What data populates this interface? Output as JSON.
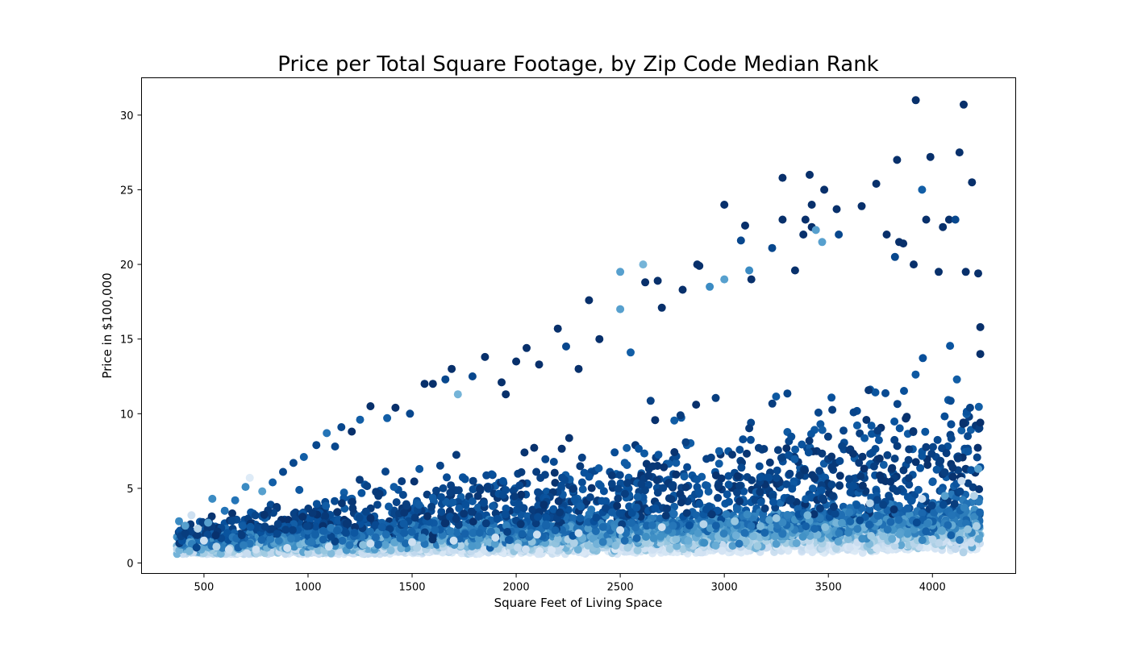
{
  "chart_data": {
    "type": "scatter",
    "title": "Price per Total Square Footage, by Zip Code Median Rank",
    "xlabel": "Square Feet of Living Space",
    "ylabel": "Price in $100,000",
    "xlim": [
      200,
      4400
    ],
    "ylim": [
      -0.7,
      32.5
    ],
    "x_ticks": [
      500,
      1000,
      1500,
      2000,
      2500,
      3000,
      3500,
      4000
    ],
    "y_ticks": [
      0,
      5,
      10,
      15,
      20,
      25,
      30
    ],
    "grid": false,
    "colormap": "Blues",
    "color_encoding": "zip code median rank (light = low, dark = high)",
    "colors": {
      "darkest": "#08306b",
      "dark": "#08519c",
      "mid_dark": "#2171b5",
      "mid": "#4292c6",
      "mid_light": "#6baed6",
      "light": "#9ecae1",
      "lighter": "#c6dbef",
      "lightest": "#deebf7"
    },
    "points": [
      [
        380,
        2.8,
        0.6
      ],
      [
        410,
        2.5,
        0.5
      ],
      [
        430,
        0.8,
        0.4
      ],
      [
        440,
        3.2,
        0.1
      ],
      [
        470,
        2.3,
        0.2
      ],
      [
        500,
        1.5,
        0.1
      ],
      [
        520,
        2.7,
        0.5
      ],
      [
        540,
        4.3,
        0.6
      ],
      [
        560,
        1.1,
        0.2
      ],
      [
        600,
        3.5,
        0.7
      ],
      [
        650,
        4.2,
        0.7
      ],
      [
        700,
        5.1,
        0.6
      ],
      [
        720,
        5.7,
        0.0
      ],
      [
        780,
        4.8,
        0.5
      ],
      [
        830,
        5.4,
        0.8
      ],
      [
        880,
        6.1,
        0.9
      ],
      [
        930,
        6.7,
        0.9
      ],
      [
        980,
        7.1,
        0.8
      ],
      [
        1040,
        7.9,
        0.9
      ],
      [
        1090,
        8.7,
        0.7
      ],
      [
        1130,
        7.8,
        0.9
      ],
      [
        1160,
        9.1,
        0.9
      ],
      [
        1210,
        8.8,
        1.0
      ],
      [
        1250,
        9.6,
        0.8
      ],
      [
        1300,
        10.5,
        1.0
      ],
      [
        1380,
        9.7,
        0.8
      ],
      [
        1420,
        10.4,
        1.0
      ],
      [
        1490,
        10.0,
        0.9
      ],
      [
        1560,
        12.0,
        1.0
      ],
      [
        1600,
        12.0,
        1.0
      ],
      [
        1660,
        12.3,
        0.9
      ],
      [
        1690,
        13.0,
        1.0
      ],
      [
        1720,
        11.3,
        0.4
      ],
      [
        1790,
        12.5,
        0.9
      ],
      [
        1850,
        13.8,
        1.0
      ],
      [
        1930,
        12.1,
        1.0
      ],
      [
        1950,
        11.3,
        1.0
      ],
      [
        2000,
        13.5,
        1.0
      ],
      [
        2050,
        14.4,
        1.0
      ],
      [
        2110,
        13.3,
        1.0
      ],
      [
        2200,
        15.7,
        1.0
      ],
      [
        2240,
        14.5,
        0.9
      ],
      [
        2300,
        13.0,
        1.0
      ],
      [
        2350,
        17.6,
        1.0
      ],
      [
        2400,
        15.0,
        1.0
      ],
      [
        2500,
        19.5,
        0.5
      ],
      [
        2500,
        17.0,
        0.5
      ],
      [
        2550,
        14.1,
        0.8
      ],
      [
        2610,
        20.0,
        0.4
      ],
      [
        2620,
        18.8,
        1.0
      ],
      [
        2680,
        18.9,
        1.0
      ],
      [
        2700,
        17.1,
        1.0
      ],
      [
        2800,
        18.3,
        1.0
      ],
      [
        2870,
        20.0,
        1.0
      ],
      [
        2880,
        19.9,
        1.0
      ],
      [
        2930,
        18.5,
        0.6
      ],
      [
        3000,
        24.0,
        1.0
      ],
      [
        3000,
        19.0,
        0.5
      ],
      [
        3080,
        21.6,
        0.9
      ],
      [
        3100,
        22.6,
        1.0
      ],
      [
        3120,
        19.6,
        0.6
      ],
      [
        3130,
        19.0,
        1.0
      ],
      [
        3230,
        21.1,
        0.9
      ],
      [
        3280,
        25.8,
        1.0
      ],
      [
        3280,
        23.0,
        1.0
      ],
      [
        3340,
        19.6,
        1.0
      ],
      [
        3380,
        22.0,
        1.0
      ],
      [
        3390,
        23.0,
        1.0
      ],
      [
        3410,
        26.0,
        1.0
      ],
      [
        3420,
        24.0,
        1.0
      ],
      [
        3420,
        22.5,
        1.0
      ],
      [
        3440,
        22.3,
        0.5
      ],
      [
        3470,
        21.5,
        0.5
      ],
      [
        3480,
        25.0,
        1.0
      ],
      [
        3540,
        23.7,
        1.0
      ],
      [
        3550,
        22.0,
        0.9
      ],
      [
        3660,
        23.9,
        1.0
      ],
      [
        3730,
        25.4,
        1.0
      ],
      [
        3780,
        22.0,
        1.0
      ],
      [
        3820,
        20.5,
        0.9
      ],
      [
        3830,
        27.0,
        1.0
      ],
      [
        3840,
        21.5,
        1.0
      ],
      [
        3860,
        21.4,
        1.0
      ],
      [
        3910,
        20.0,
        1.0
      ],
      [
        3920,
        31.0,
        1.0
      ],
      [
        3950,
        25.0,
        0.8
      ],
      [
        3970,
        23.0,
        1.0
      ],
      [
        3990,
        27.2,
        1.0
      ],
      [
        4030,
        19.5,
        1.0
      ],
      [
        4050,
        22.5,
        1.0
      ],
      [
        4080,
        23.0,
        1.0
      ],
      [
        4110,
        23.0,
        0.9
      ],
      [
        4130,
        27.5,
        1.0
      ],
      [
        4150,
        30.7,
        1.0
      ],
      [
        4160,
        19.5,
        1.0
      ],
      [
        4190,
        25.5,
        1.0
      ],
      [
        4220,
        19.4,
        1.0
      ],
      [
        4230,
        15.8,
        1.0
      ],
      [
        4230,
        14.0,
        1.0
      ],
      [
        4230,
        9.4,
        1.0
      ],
      [
        4220,
        6.3,
        0.5
      ],
      [
        4200,
        4.5,
        0.2
      ],
      [
        4170,
        8.5,
        0.9
      ],
      [
        4140,
        5.5,
        0.1
      ],
      [
        4060,
        4.5,
        0.5
      ],
      [
        3950,
        4.3,
        0.1
      ],
      [
        3700,
        4.0,
        0.2
      ],
      [
        3400,
        3.2,
        0.4
      ],
      [
        3250,
        3.0,
        0.3
      ],
      [
        3050,
        2.8,
        0.3
      ],
      [
        2900,
        2.6,
        0.2
      ],
      [
        2700,
        2.4,
        0.1
      ],
      [
        2500,
        2.2,
        0.1
      ],
      [
        2300,
        2.0,
        0.1
      ],
      [
        2100,
        1.9,
        0.1
      ],
      [
        1900,
        1.7,
        0.1
      ],
      [
        1700,
        1.5,
        0.1
      ],
      [
        1500,
        1.4,
        0.1
      ],
      [
        1300,
        1.3,
        0.1
      ],
      [
        1100,
        1.1,
        0.1
      ],
      [
        900,
        1.0,
        0.1
      ],
      [
        750,
        0.9,
        0.1
      ],
      [
        620,
        0.9,
        0.1
      ],
      [
        1200,
        1.2,
        0.7
      ]
    ],
    "note_generated": "dense cloud rendered procedurally from the visible trend"
  }
}
